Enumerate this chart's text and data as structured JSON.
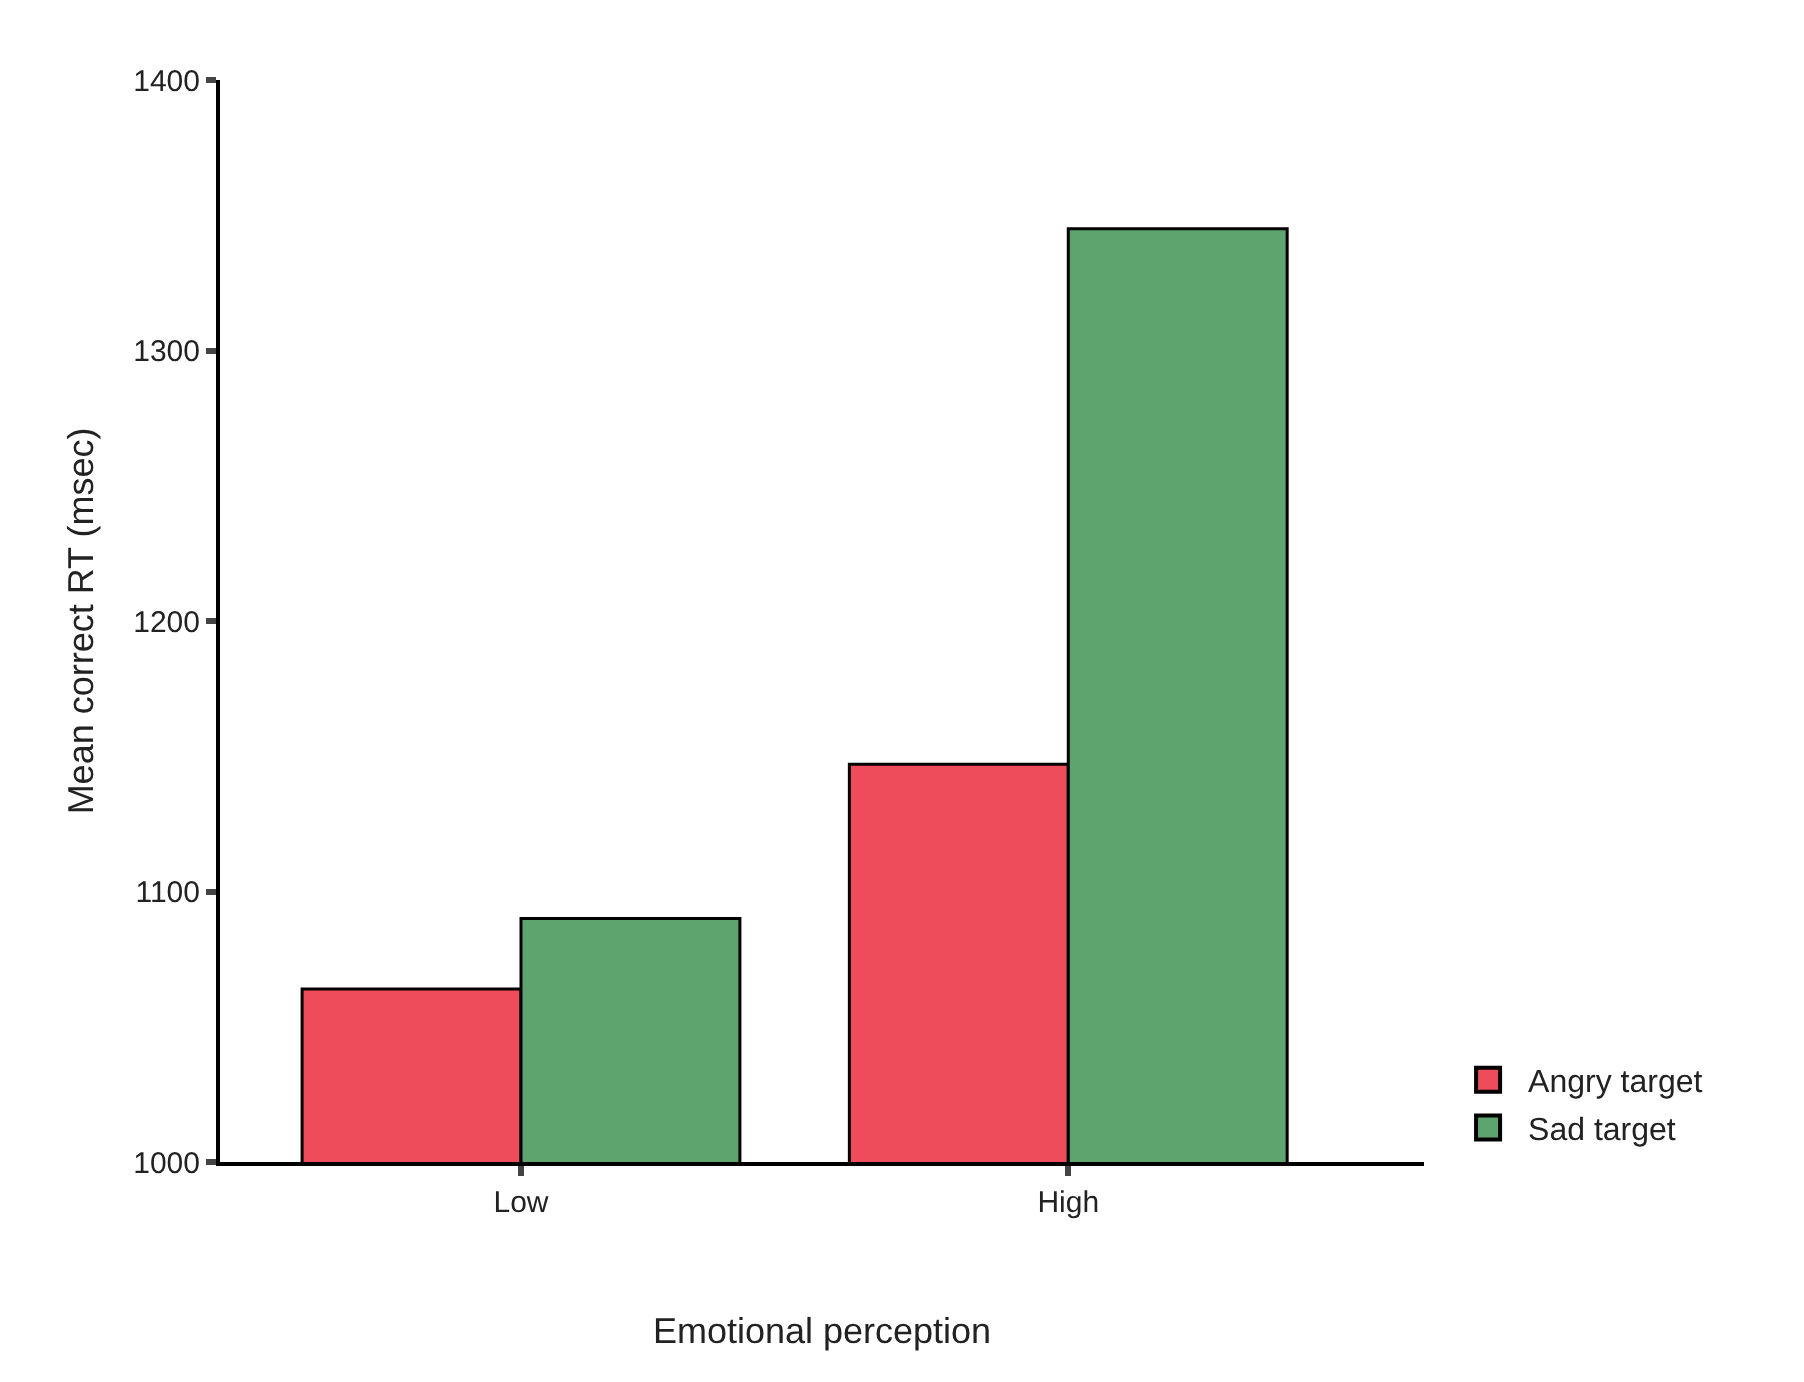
{
  "chart_data": {
    "type": "bar",
    "xlabel": "Emotional perception",
    "ylabel": "Mean correct RT (msec)",
    "categories": [
      "Low",
      "High"
    ],
    "series": [
      {
        "name": "Angry target",
        "color": "#ee4c5a",
        "values": [
          1064,
          1147
        ]
      },
      {
        "name": "Sad target",
        "color": "#5ea46e",
        "values": [
          1090,
          1345
        ]
      }
    ],
    "ylim": [
      1000,
      1400
    ],
    "yticks": [
      1000,
      1100,
      1200,
      1300,
      1400
    ],
    "legend": "bottom right"
  }
}
